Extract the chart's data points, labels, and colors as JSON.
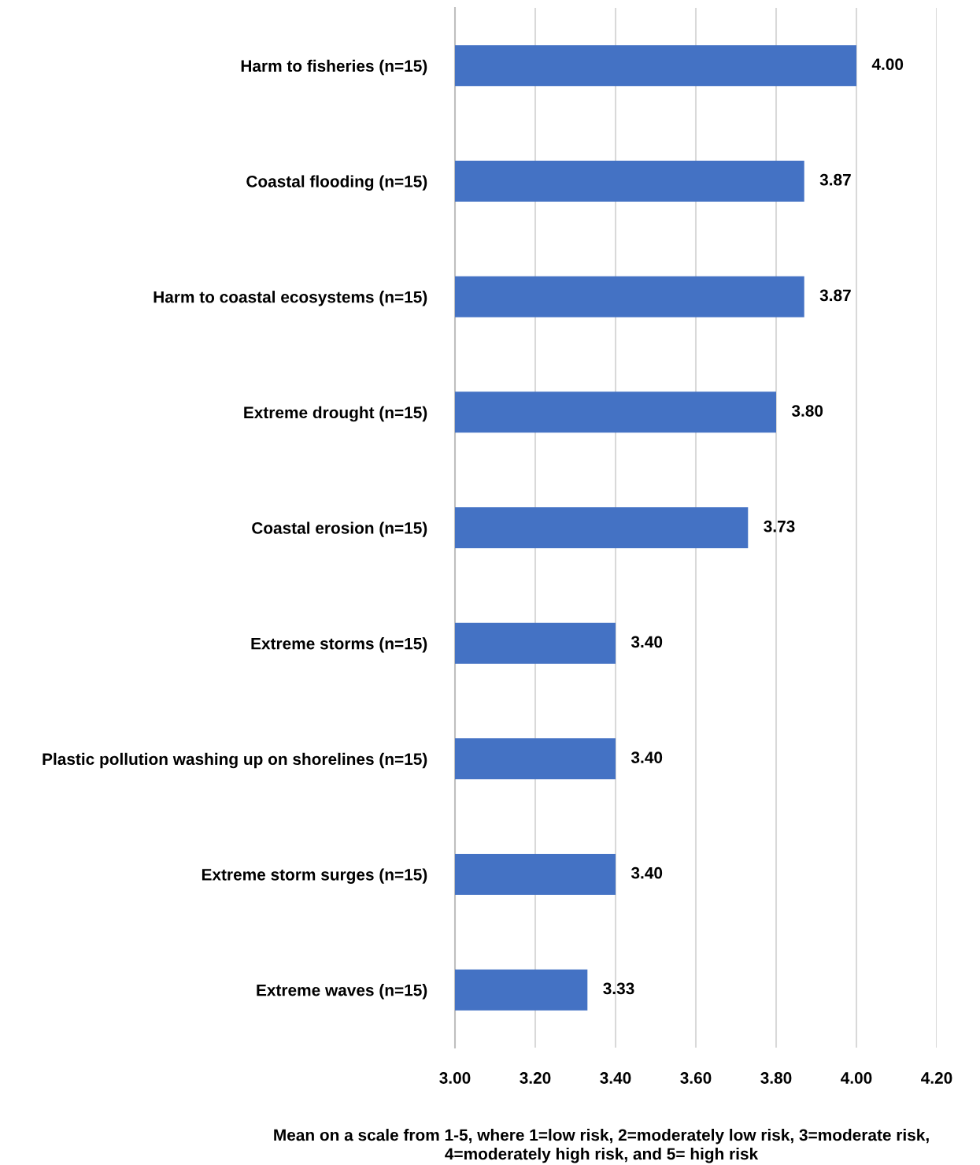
{
  "chart_data": {
    "type": "bar",
    "orientation": "horizontal",
    "categories": [
      "Harm to fisheries (n=15)",
      "Coastal flooding (n=15)",
      "Harm to coastal ecosystems (n=15)",
      "Extreme drought (n=15)",
      "Coastal erosion (n=15)",
      "Extreme storms (n=15)",
      "Plastic pollution washing up on shorelines (n=15)",
      "Extreme storm surges (n=15)",
      "Extreme waves (n=15)"
    ],
    "values": [
      4.0,
      3.87,
      3.87,
      3.8,
      3.73,
      3.4,
      3.4,
      3.4,
      3.33
    ],
    "color": "#4472c4",
    "value_labels": [
      "4.00",
      "3.87",
      "3.87",
      "3.80",
      "3.73",
      "3.40",
      "3.40",
      "3.40",
      "3.33"
    ],
    "xlim": [
      3.0,
      4.2
    ],
    "xticks": [
      {
        "value": 3.0,
        "label": "3.00"
      },
      {
        "value": 3.2,
        "label": "3.20"
      },
      {
        "value": 3.4,
        "label": "3.40"
      },
      {
        "value": 3.6,
        "label": "3.60"
      },
      {
        "value": 3.8,
        "label": "3.80"
      },
      {
        "value": 4.0,
        "label": "4.00"
      },
      {
        "value": 4.2,
        "label": "4.20"
      }
    ],
    "xlabel": "Mean on a scale from 1-5, where 1=low risk, 2=moderately low risk, 3=moderate risk,\n4=moderately high risk, and 5= high risk",
    "grid": "x",
    "legend": false
  }
}
